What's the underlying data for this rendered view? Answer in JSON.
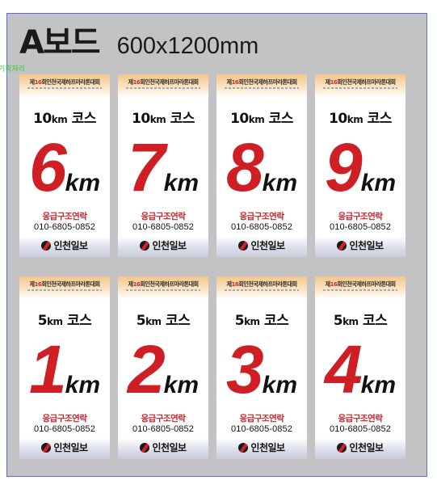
{
  "header": {
    "board_name": "A보드",
    "board_size": "600x1200mm"
  },
  "annotation": {
    "text": "기획자리"
  },
  "event": {
    "prefix": "제",
    "edition": "16",
    "suffix": "회인천국제하프마라톤대회"
  },
  "contact": {
    "label": "응급구조연락",
    "phone": "010-6805-0852"
  },
  "sponsor": {
    "name": "인천일보"
  },
  "colors": {
    "accent_red": "#cf1f25",
    "board_gray": "#c3c3c5",
    "frame_blue": "#5a6ed0"
  },
  "cards": [
    {
      "course_num": "10",
      "course_unit": "km",
      "course_word": "코스",
      "distance": "6",
      "unit": "km"
    },
    {
      "course_num": "10",
      "course_unit": "km",
      "course_word": "코스",
      "distance": "7",
      "unit": "km"
    },
    {
      "course_num": "10",
      "course_unit": "km",
      "course_word": "코스",
      "distance": "8",
      "unit": "km"
    },
    {
      "course_num": "10",
      "course_unit": "km",
      "course_word": "코스",
      "distance": "9",
      "unit": "km"
    },
    {
      "course_num": "5",
      "course_unit": "km",
      "course_word": "코스",
      "distance": "1",
      "unit": "km"
    },
    {
      "course_num": "5",
      "course_unit": "km",
      "course_word": "코스",
      "distance": "2",
      "unit": "km"
    },
    {
      "course_num": "5",
      "course_unit": "km",
      "course_word": "코스",
      "distance": "3",
      "unit": "km"
    },
    {
      "course_num": "5",
      "course_unit": "km",
      "course_word": "코스",
      "distance": "4",
      "unit": "km"
    }
  ]
}
